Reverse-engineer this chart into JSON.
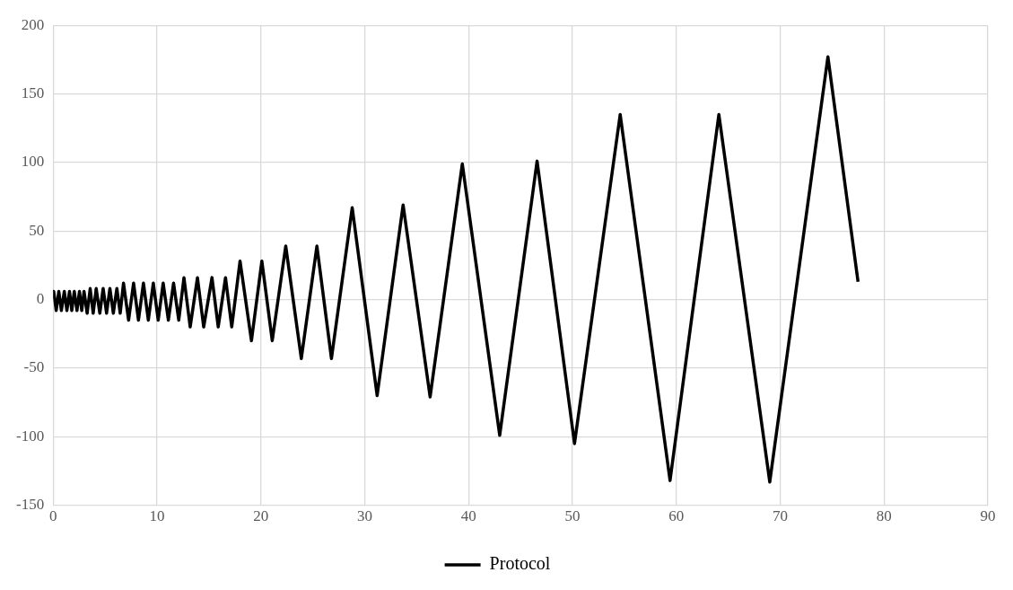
{
  "chart_data": {
    "type": "line",
    "xlim": [
      0,
      90
    ],
    "xticks": [
      0,
      10,
      20,
      30,
      40,
      50,
      60,
      70,
      80,
      90
    ],
    "ylim": [
      -150,
      200
    ],
    "yticks": [
      -150,
      -100,
      -50,
      0,
      50,
      100,
      150,
      200
    ],
    "grid": true,
    "legend": "bottom",
    "marker": "none",
    "line_style": "solid",
    "series": [
      {
        "name": "Protocol",
        "color": "#000000",
        "x": [
          0,
          0.06,
          0.3,
          0.55,
          0.8,
          1.08,
          1.33,
          1.58,
          1.8,
          2.04,
          2.3,
          2.54,
          2.76,
          2.98,
          3.28,
          3.57,
          3.86,
          4.15,
          4.5,
          4.82,
          5.15,
          5.47,
          5.8,
          6.14,
          6.46,
          6.78,
          7.27,
          7.75,
          8.22,
          8.7,
          9.17,
          9.65,
          10.12,
          10.6,
          11.1,
          11.6,
          12.1,
          12.6,
          13.2,
          13.9,
          14.5,
          15.3,
          15.9,
          16.6,
          17.2,
          18.0,
          19.1,
          20.1,
          21.1,
          22.4,
          23.9,
          25.4,
          26.8,
          28.8,
          31.2,
          33.7,
          36.3,
          39.4,
          43.0,
          46.6,
          50.2,
          54.6,
          59.4,
          64.1,
          69.0,
          74.6,
          77.5
        ],
        "values": [
          3,
          6,
          -8,
          6,
          -8,
          6,
          -8,
          6,
          -8,
          6,
          -8,
          6,
          -8,
          6,
          -10,
          8,
          -10,
          8,
          -10,
          8,
          -10,
          8,
          -10,
          8,
          -10,
          12,
          -15,
          12,
          -15,
          12,
          -15,
          12,
          -15,
          12,
          -15,
          12,
          -15,
          16,
          -20,
          16,
          -20,
          16,
          -20,
          16,
          -20,
          28,
          -30,
          28,
          -30,
          39,
          -43,
          39,
          -43,
          67,
          -70,
          69,
          -71,
          99,
          -99,
          101,
          -105,
          135,
          -132,
          135,
          -133,
          177,
          13
        ]
      }
    ]
  }
}
